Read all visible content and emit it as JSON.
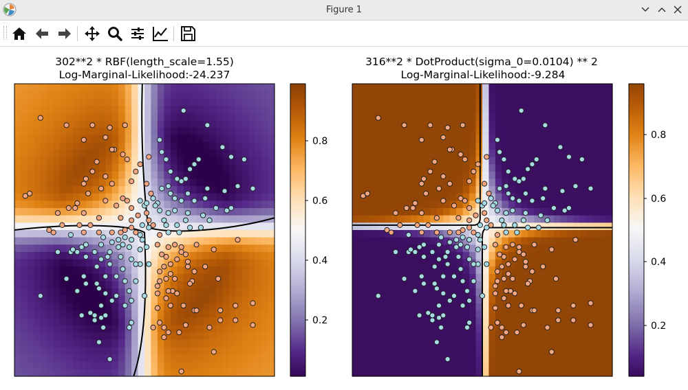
{
  "window": {
    "title": "Figure 1"
  },
  "toolbar": {
    "buttons": [
      {
        "name": "home-icon",
        "label": "Home"
      },
      {
        "name": "back-icon",
        "label": "Back"
      },
      {
        "name": "forward-icon",
        "label": "Forward"
      },
      {
        "name": "pan-icon",
        "label": "Pan"
      },
      {
        "name": "zoom-icon",
        "label": "Zoom"
      },
      {
        "name": "configure-subplots-icon",
        "label": "Subplots"
      },
      {
        "name": "edit-axis-icon",
        "label": "Customize"
      },
      {
        "name": "save-icon",
        "label": "Save"
      }
    ]
  },
  "colors": {
    "class0_points": "#f4a582",
    "class1_points": "#a6dbe6",
    "colormap": "PuOr_r",
    "contour": "#000000"
  },
  "chart_data": [
    {
      "type": "heatmap",
      "title": "302**2 * RBF(length_scale=1.55)",
      "subtitle": "Log-Marginal-Likelihood:-24.237",
      "colorbar_ticks": [
        0.2,
        0.4,
        0.6,
        0.8
      ],
      "colorbar_range": [
        0.02,
        0.98
      ],
      "xlim": [
        -3,
        3
      ],
      "ylim": [
        -3,
        3
      ],
      "decision_boundary": 0.5,
      "grid": false
    },
    {
      "type": "heatmap",
      "title": "316**2 * DotProduct(sigma_0=0.0104) ** 2",
      "subtitle": "Log-Marginal-Likelihood:-9.284",
      "colorbar_ticks": [
        0.2,
        0.4,
        0.6,
        0.8
      ],
      "colorbar_range": [
        0.03,
        0.96
      ],
      "xlim": [
        -3,
        3
      ],
      "ylim": [
        -3,
        3
      ],
      "decision_boundary": 0.5,
      "grid": false
    }
  ],
  "points": [
    {
      "x": -2.4,
      "y": 2.3,
      "c": 0
    },
    {
      "x": -1.8,
      "y": 2.15,
      "c": 0
    },
    {
      "x": -1.2,
      "y": 2.15,
      "c": 0
    },
    {
      "x": -0.8,
      "y": 2.1,
      "c": 0
    },
    {
      "x": -0.45,
      "y": 2.15,
      "c": 0
    },
    {
      "x": -1.4,
      "y": 1.85,
      "c": 0
    },
    {
      "x": -0.9,
      "y": 1.9,
      "c": 0
    },
    {
      "x": -0.7,
      "y": 1.65,
      "c": 0
    },
    {
      "x": -0.75,
      "y": 1.65,
      "c": 0
    },
    {
      "x": -0.5,
      "y": 1.55,
      "c": 0
    },
    {
      "x": -1.1,
      "y": 1.4,
      "c": 0
    },
    {
      "x": -0.4,
      "y": 1.45,
      "c": 0
    },
    {
      "x": -0.1,
      "y": 1.35,
      "c": 0
    },
    {
      "x": 0.1,
      "y": 1.5,
      "c": 0
    },
    {
      "x": -0.2,
      "y": 1.2,
      "c": 0
    },
    {
      "x": -1.2,
      "y": 1.2,
      "c": 0
    },
    {
      "x": -0.9,
      "y": 1.1,
      "c": 0
    },
    {
      "x": -1.35,
      "y": 1.05,
      "c": 0
    },
    {
      "x": -1.4,
      "y": 0.95,
      "c": 0
    },
    {
      "x": -1.3,
      "y": 0.75,
      "c": 0
    },
    {
      "x": -1.0,
      "y": 0.85,
      "c": 0
    },
    {
      "x": -0.75,
      "y": 0.95,
      "c": 0
    },
    {
      "x": -0.3,
      "y": 1.0,
      "c": 0
    },
    {
      "x": 0.05,
      "y": 0.95,
      "c": 0
    },
    {
      "x": 0.15,
      "y": 0.75,
      "c": 0
    },
    {
      "x": -0.5,
      "y": 0.65,
      "c": 0
    },
    {
      "x": -0.9,
      "y": 0.6,
      "c": 0
    },
    {
      "x": -0.65,
      "y": 0.5,
      "c": 0
    },
    {
      "x": -0.4,
      "y": 0.6,
      "c": 0
    },
    {
      "x": -0.3,
      "y": 0.45,
      "c": 0
    },
    {
      "x": -1.55,
      "y": 0.55,
      "c": 0
    },
    {
      "x": -1.75,
      "y": 0.45,
      "c": 0
    },
    {
      "x": -1.6,
      "y": 0.45,
      "c": 0
    },
    {
      "x": -1.4,
      "y": 0.35,
      "c": 0
    },
    {
      "x": -2.75,
      "y": 0.7,
      "c": 0
    },
    {
      "x": -2.65,
      "y": 0.75,
      "c": 0
    },
    {
      "x": -1.5,
      "y": 0.1,
      "c": 0
    },
    {
      "x": -1.05,
      "y": 0.25,
      "c": 0
    },
    {
      "x": -1.25,
      "y": 0.1,
      "c": 0
    },
    {
      "x": -0.55,
      "y": 0.25,
      "c": 0
    },
    {
      "x": -0.3,
      "y": 0.05,
      "c": 0
    },
    {
      "x": -0.3,
      "y": 0.2,
      "c": 0
    },
    {
      "x": -0.15,
      "y": 0.3,
      "c": 0
    },
    {
      "x": 0.05,
      "y": 0.35,
      "c": 0
    },
    {
      "x": 0.1,
      "y": 0.2,
      "c": 0
    },
    {
      "x": 0.2,
      "y": 0.1,
      "c": 0
    },
    {
      "x": -0.2,
      "y": -0.05,
      "c": 0
    },
    {
      "x": -0.75,
      "y": -0.05,
      "c": 0
    },
    {
      "x": -1.05,
      "y": -0.05,
      "c": 0
    },
    {
      "x": -1.4,
      "y": -0.05,
      "c": 0
    },
    {
      "x": -2.1,
      "y": -0.05,
      "c": 0
    },
    {
      "x": -2.2,
      "y": 0.0,
      "c": 0
    },
    {
      "x": -0.55,
      "y": -0.05,
      "c": 0
    },
    {
      "x": -0.45,
      "y": 0.0,
      "c": 0
    },
    {
      "x": -1.9,
      "y": 0.1,
      "c": 0
    },
    {
      "x": -2.0,
      "y": 0.35,
      "c": 0
    },
    {
      "x": 0.55,
      "y": -0.35,
      "c": 0
    },
    {
      "x": 0.85,
      "y": -0.35,
      "c": 0
    },
    {
      "x": 1.2,
      "y": -0.3,
      "c": 0
    },
    {
      "x": 1.6,
      "y": -0.4,
      "c": 0
    },
    {
      "x": 2.15,
      "y": -0.2,
      "c": 0
    },
    {
      "x": 0.85,
      "y": -0.45,
      "c": 0
    },
    {
      "x": 0.5,
      "y": -0.55,
      "c": 0
    },
    {
      "x": 0.45,
      "y": -0.75,
      "c": 0
    },
    {
      "x": 0.35,
      "y": -0.85,
      "c": 0
    },
    {
      "x": 0.6,
      "y": -0.9,
      "c": 0
    },
    {
      "x": 1.0,
      "y": -0.75,
      "c": 0
    },
    {
      "x": 1.15,
      "y": -0.85,
      "c": 0
    },
    {
      "x": 0.7,
      "y": -1.0,
      "c": 0
    },
    {
      "x": 0.35,
      "y": -1.05,
      "c": 0
    },
    {
      "x": 0.3,
      "y": -1.15,
      "c": 0
    },
    {
      "x": 0.65,
      "y": -1.25,
      "c": 0
    },
    {
      "x": 0.75,
      "y": -1.3,
      "c": 0
    },
    {
      "x": 1.1,
      "y": -1.05,
      "c": 0
    },
    {
      "x": 1.4,
      "y": -0.75,
      "c": 0
    },
    {
      "x": 1.7,
      "y": -1.0,
      "c": 0
    },
    {
      "x": 0.5,
      "y": -1.4,
      "c": 0
    },
    {
      "x": 0.6,
      "y": -1.55,
      "c": 0
    },
    {
      "x": 1.15,
      "y": -1.65,
      "c": 0
    },
    {
      "x": 1.2,
      "y": -1.65,
      "c": 0
    },
    {
      "x": 1.75,
      "y": -1.65,
      "c": 0
    },
    {
      "x": 2.1,
      "y": -1.55,
      "c": 0
    },
    {
      "x": 2.1,
      "y": -1.85,
      "c": 0
    },
    {
      "x": 2.5,
      "y": -1.5,
      "c": 0
    },
    {
      "x": 2.5,
      "y": -1.95,
      "c": 0
    },
    {
      "x": 1.75,
      "y": -1.85,
      "c": 0
    },
    {
      "x": 0.95,
      "y": -1.95,
      "c": 0
    },
    {
      "x": 0.45,
      "y": -2.2,
      "c": 0
    },
    {
      "x": 0.35,
      "y": -1.9,
      "c": 0
    },
    {
      "x": 0.3,
      "y": -1.6,
      "c": 0
    },
    {
      "x": 0.3,
      "y": -1.3,
      "c": 0
    },
    {
      "x": 0.4,
      "y": -0.5,
      "c": 0
    },
    {
      "x": 0.3,
      "y": -0.3,
      "c": 0
    },
    {
      "x": 0.35,
      "y": -0.1,
      "c": 0
    },
    {
      "x": 1.5,
      "y": -2.0,
      "c": 0
    },
    {
      "x": 1.6,
      "y": -2.5,
      "c": 0
    },
    {
      "x": 0.55,
      "y": -2.1,
      "c": 0
    },
    {
      "x": 0.8,
      "y": -2.1,
      "c": 0
    },
    {
      "x": 0.45,
      "y": -2.0,
      "c": 0
    },
    {
      "x": 0.2,
      "y": -2.0,
      "c": 0
    },
    {
      "x": 0.85,
      "y": -2.9,
      "c": 0
    },
    {
      "x": 0.9,
      "y": -1.55,
      "c": 0
    },
    {
      "x": 0.5,
      "y": -1.0,
      "c": 0
    },
    {
      "x": 0.6,
      "y": -0.7,
      "c": 0
    },
    {
      "x": 0.95,
      "y": -0.5,
      "c": 0
    },
    {
      "x": 1.0,
      "y": -0.65,
      "c": 0
    },
    {
      "x": 0.7,
      "y": -0.3,
      "c": 0
    },
    {
      "x": 0.75,
      "y": -0.6,
      "c": 0
    },
    {
      "x": 0.55,
      "y": -1.25,
      "c": 0
    },
    {
      "x": 1.05,
      "y": -1.1,
      "c": 0
    },
    {
      "x": 0.9,
      "y": 2.45,
      "c": 1
    },
    {
      "x": 0.35,
      "y": 1.85,
      "c": 1
    },
    {
      "x": 0.4,
      "y": 1.6,
      "c": 1
    },
    {
      "x": 0.5,
      "y": 1.45,
      "c": 1
    },
    {
      "x": 1.45,
      "y": 2.15,
      "c": 1
    },
    {
      "x": 1.8,
      "y": 1.7,
      "c": 1
    },
    {
      "x": 2.0,
      "y": 1.5,
      "c": 1
    },
    {
      "x": 2.3,
      "y": 1.45,
      "c": 1
    },
    {
      "x": 1.25,
      "y": 1.45,
      "c": 1
    },
    {
      "x": 1.15,
      "y": 1.35,
      "c": 1
    },
    {
      "x": 1.05,
      "y": 1.25,
      "c": 1
    },
    {
      "x": 0.6,
      "y": 1.2,
      "c": 1
    },
    {
      "x": 0.75,
      "y": 1.05,
      "c": 1
    },
    {
      "x": 0.85,
      "y": 1.0,
      "c": 1
    },
    {
      "x": 0.95,
      "y": 1.05,
      "c": 1
    },
    {
      "x": 0.55,
      "y": 0.9,
      "c": 1
    },
    {
      "x": 0.4,
      "y": 0.85,
      "c": 1
    },
    {
      "x": 0.6,
      "y": 0.75,
      "c": 1
    },
    {
      "x": 0.7,
      "y": 0.65,
      "c": 1
    },
    {
      "x": 0.85,
      "y": 0.6,
      "c": 1
    },
    {
      "x": 1.0,
      "y": 0.75,
      "c": 1
    },
    {
      "x": 1.15,
      "y": 0.6,
      "c": 1
    },
    {
      "x": 1.4,
      "y": 0.65,
      "c": 1
    },
    {
      "x": 1.45,
      "y": 0.85,
      "c": 1
    },
    {
      "x": 1.85,
      "y": 0.8,
      "c": 1
    },
    {
      "x": 2.15,
      "y": 0.9,
      "c": 1
    },
    {
      "x": 2.5,
      "y": 0.85,
      "c": 1
    },
    {
      "x": 1.65,
      "y": 0.45,
      "c": 1
    },
    {
      "x": 1.9,
      "y": 0.4,
      "c": 1
    },
    {
      "x": 2.0,
      "y": 0.45,
      "c": 1
    },
    {
      "x": 1.5,
      "y": 0.2,
      "c": 1
    },
    {
      "x": 1.35,
      "y": 0.3,
      "c": 1
    },
    {
      "x": 1.0,
      "y": 0.35,
      "c": 1
    },
    {
      "x": 0.7,
      "y": 0.4,
      "c": 1
    },
    {
      "x": 0.55,
      "y": 0.35,
      "c": 1
    },
    {
      "x": 0.35,
      "y": 0.4,
      "c": 1
    },
    {
      "x": 0.45,
      "y": 0.2,
      "c": 1
    },
    {
      "x": 0.3,
      "y": 0.55,
      "c": 1
    },
    {
      "x": 0.25,
      "y": 0.5,
      "c": 1
    },
    {
      "x": 0.5,
      "y": 0.1,
      "c": 1
    },
    {
      "x": 0.75,
      "y": 0.1,
      "c": 1
    },
    {
      "x": 0.95,
      "y": 0.2,
      "c": 1
    },
    {
      "x": 1.05,
      "y": 0.05,
      "c": 1
    },
    {
      "x": 1.3,
      "y": 0.05,
      "c": 1
    },
    {
      "x": 0.8,
      "y": -0.05,
      "c": 1
    },
    {
      "x": 0.55,
      "y": -0.05,
      "c": 1
    },
    {
      "x": 0.1,
      "y": 0.05,
      "c": 1
    },
    {
      "x": 0.0,
      "y": 0.5,
      "c": 1
    },
    {
      "x": -0.1,
      "y": 0.6,
      "c": 1
    },
    {
      "x": 0.05,
      "y": 0.55,
      "c": 1
    },
    {
      "x": -1.7,
      "y": -0.1,
      "c": 1
    },
    {
      "x": -1.45,
      "y": -0.35,
      "c": 1
    },
    {
      "x": -1.35,
      "y": -0.3,
      "c": 1
    },
    {
      "x": -1.0,
      "y": -0.3,
      "c": 1
    },
    {
      "x": -0.75,
      "y": -0.25,
      "c": 1
    },
    {
      "x": -0.6,
      "y": -0.2,
      "c": 1
    },
    {
      "x": -0.45,
      "y": -0.15,
      "c": 1
    },
    {
      "x": -0.3,
      "y": -0.2,
      "c": 1
    },
    {
      "x": -0.05,
      "y": -0.2,
      "c": 1
    },
    {
      "x": 0.05,
      "y": -0.35,
      "c": 1
    },
    {
      "x": -0.1,
      "y": -0.4,
      "c": 1
    },
    {
      "x": -0.35,
      "y": -0.35,
      "c": 1
    },
    {
      "x": -0.6,
      "y": -0.35,
      "c": 1
    },
    {
      "x": -0.8,
      "y": -0.45,
      "c": 1
    },
    {
      "x": -1.15,
      "y": -0.45,
      "c": 1
    },
    {
      "x": -1.55,
      "y": -0.45,
      "c": 1
    },
    {
      "x": -1.7,
      "y": -0.45,
      "c": 1
    },
    {
      "x": -2.0,
      "y": -0.45,
      "c": 1
    },
    {
      "x": -1.65,
      "y": -0.4,
      "c": 1
    },
    {
      "x": -1.35,
      "y": -0.55,
      "c": 1
    },
    {
      "x": -1.0,
      "y": -0.6,
      "c": 1
    },
    {
      "x": -0.85,
      "y": -0.55,
      "c": 1
    },
    {
      "x": -0.55,
      "y": -0.55,
      "c": 1
    },
    {
      "x": -0.3,
      "y": -0.6,
      "c": 1
    },
    {
      "x": -0.1,
      "y": -0.7,
      "c": 1
    },
    {
      "x": 0.1,
      "y": -0.7,
      "c": 1
    },
    {
      "x": -0.2,
      "y": -0.7,
      "c": 1
    },
    {
      "x": -0.5,
      "y": -0.8,
      "c": 1
    },
    {
      "x": -0.8,
      "y": -0.7,
      "c": 1
    },
    {
      "x": -1.1,
      "y": -0.75,
      "c": 1
    },
    {
      "x": -0.9,
      "y": -0.95,
      "c": 1
    },
    {
      "x": -0.65,
      "y": -0.95,
      "c": 1
    },
    {
      "x": -0.45,
      "y": -1.05,
      "c": 1
    },
    {
      "x": -0.2,
      "y": -1.05,
      "c": 1
    },
    {
      "x": -0.35,
      "y": -1.25,
      "c": 1
    },
    {
      "x": -0.65,
      "y": -1.35,
      "c": 1
    },
    {
      "x": -0.9,
      "y": -1.3,
      "c": 1
    },
    {
      "x": -1.05,
      "y": -1.2,
      "c": 1
    },
    {
      "x": -0.3,
      "y": -1.45,
      "c": 1
    },
    {
      "x": 0.0,
      "y": -1.35,
      "c": 1
    },
    {
      "x": -0.45,
      "y": -1.55,
      "c": 1
    },
    {
      "x": -0.75,
      "y": -1.45,
      "c": 1
    },
    {
      "x": -1.0,
      "y": -1.55,
      "c": 1
    },
    {
      "x": -1.25,
      "y": -1.7,
      "c": 1
    },
    {
      "x": -1.45,
      "y": -1.75,
      "c": 1
    },
    {
      "x": -1.15,
      "y": -1.85,
      "c": 1
    },
    {
      "x": -1.0,
      "y": -1.8,
      "c": 1
    },
    {
      "x": -0.9,
      "y": -1.75,
      "c": 1
    },
    {
      "x": -1.15,
      "y": -1.75,
      "c": 1
    },
    {
      "x": -0.35,
      "y": -2.0,
      "c": 1
    },
    {
      "x": -0.3,
      "y": -1.9,
      "c": 1
    },
    {
      "x": -0.95,
      "y": -2.0,
      "c": 1
    },
    {
      "x": -1.05,
      "y": -2.3,
      "c": 1
    },
    {
      "x": -0.8,
      "y": -2.65,
      "c": 1
    },
    {
      "x": -2.4,
      "y": -1.35,
      "c": 1
    },
    {
      "x": -1.8,
      "y": -1.0,
      "c": 1
    },
    {
      "x": -1.4,
      "y": -0.95,
      "c": 1
    },
    {
      "x": -1.35,
      "y": -1.1,
      "c": 1
    },
    {
      "x": -1.55,
      "y": -1.25,
      "c": 1
    },
    {
      "x": -1.1,
      "y": -1.1,
      "c": 1
    },
    {
      "x": -0.5,
      "y": -0.3,
      "c": 1
    },
    {
      "x": -0.95,
      "y": -0.15,
      "c": 1
    },
    {
      "x": -0.1,
      "y": -0.1,
      "c": 1
    },
    {
      "x": -0.05,
      "y": 0.1,
      "c": 1
    },
    {
      "x": 0.2,
      "y": 0.65,
      "c": 1
    }
  ]
}
